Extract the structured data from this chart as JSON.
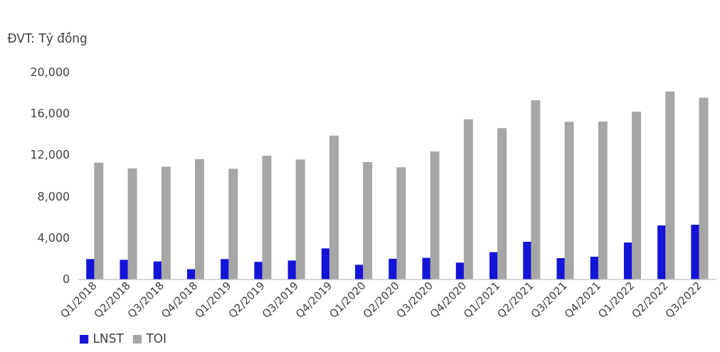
{
  "chart_data": {
    "type": "bar",
    "ylabel": "ĐVT: Tỷ đồng",
    "categories": [
      "Q1/2018",
      "Q2/2018",
      "Q3/2018",
      "Q4/2018",
      "Q1/2019",
      "Q2/2019",
      "Q3/2019",
      "Q4/2019",
      "Q1/2020",
      "Q2/2020",
      "Q3/2020",
      "Q4/2020",
      "Q1/2021",
      "Q2/2021",
      "Q3/2021",
      "Q4/2021",
      "Q1/2022",
      "Q2/2022",
      "Q3/2022"
    ],
    "series": [
      {
        "name": "LNST",
        "color": "#1414d8",
        "values": [
          1940,
          1870,
          1710,
          960,
          1940,
          1670,
          1800,
          2970,
          1390,
          1970,
          2060,
          1600,
          2610,
          3610,
          2030,
          2170,
          3540,
          5190,
          5260
        ]
      },
      {
        "name": "TOI",
        "color": "#a6a6a6",
        "values": [
          11250,
          10700,
          10860,
          11590,
          10670,
          11930,
          11570,
          13870,
          11310,
          10810,
          12340,
          15450,
          14580,
          17280,
          15200,
          15220,
          16180,
          18130,
          17530
        ]
      }
    ],
    "ylim": [
      0,
      20000
    ],
    "yticks": [
      0,
      {
        "value": 4000,
        "label": "4,000"
      },
      {
        "value": 8000,
        "label": "8,000"
      },
      {
        "value": 12000,
        "label": "12,000"
      },
      {
        "value": 16000,
        "label": "16,000"
      },
      {
        "value": 20000,
        "label": "20,000"
      }
    ],
    "grid": false,
    "legend": "bottom"
  }
}
